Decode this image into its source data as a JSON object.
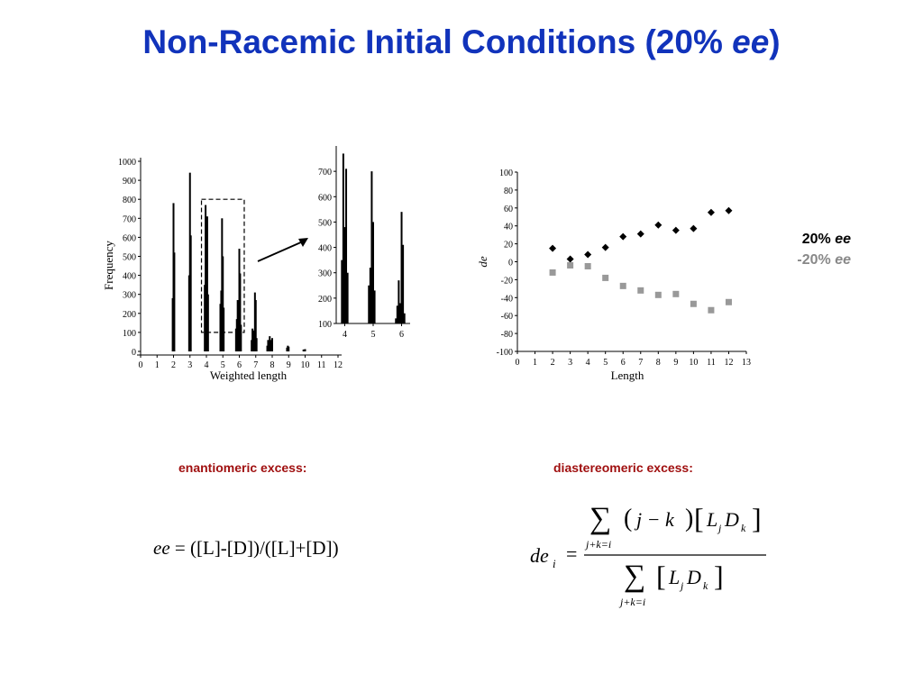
{
  "slide": {
    "title_main": "Non-Racemic Initial Conditions (20% ",
    "title_em": "ee",
    "title_end": ")"
  },
  "legend": {
    "positive_pct": "20% ",
    "positive_em": "ee",
    "negative_pct": "-20% ",
    "negative_em": "ee",
    "positive_color": "#000000",
    "negative_color": "#999999"
  },
  "labels": {
    "ee_heading": "enantiomeric excess:",
    "de_heading": "diastereomeric excess:",
    "ee_formula_var": "ee",
    "ee_formula_rest": " = ([L]-[D])/([L]+[D])",
    "de_lhs": "de",
    "de_lhs_sub": "i",
    "de_num_sum_limits": "j+k=i",
    "de_num_paren": "j − k",
    "de_num_bracket_L": "L",
    "de_num_bracket_j": "j",
    "de_num_bracket_D": "D",
    "de_num_bracket_k": "k",
    "de_den_sum_limits": "j+k=i"
  },
  "chart_data": [
    {
      "type": "bar",
      "xlabel": "Weighted length",
      "ylabel": "Frequency",
      "xlim": [
        0,
        12
      ],
      "ylim": [
        0,
        1000
      ],
      "xticks": [
        "0",
        "1",
        "2",
        "3",
        "4",
        "5",
        "6",
        "7",
        "8",
        "9",
        "10",
        "11",
        "12"
      ],
      "yticks": [
        "0",
        "100",
        "200",
        "300",
        "400",
        "500",
        "600",
        "700",
        "800",
        "900",
        "1000"
      ],
      "bars": [
        {
          "x": 1.95,
          "y": 280
        },
        {
          "x": 2.0,
          "y": 780
        },
        {
          "x": 2.05,
          "y": 520
        },
        {
          "x": 2.95,
          "y": 400
        },
        {
          "x": 3.0,
          "y": 940
        },
        {
          "x": 3.05,
          "y": 610
        },
        {
          "x": 3.9,
          "y": 350
        },
        {
          "x": 3.95,
          "y": 770
        },
        {
          "x": 4.0,
          "y": 480
        },
        {
          "x": 4.05,
          "y": 710
        },
        {
          "x": 4.1,
          "y": 300
        },
        {
          "x": 4.85,
          "y": 250
        },
        {
          "x": 4.9,
          "y": 320
        },
        {
          "x": 4.95,
          "y": 700
        },
        {
          "x": 5.0,
          "y": 500
        },
        {
          "x": 5.05,
          "y": 230
        },
        {
          "x": 5.8,
          "y": 120
        },
        {
          "x": 5.85,
          "y": 170
        },
        {
          "x": 5.9,
          "y": 270
        },
        {
          "x": 5.95,
          "y": 180
        },
        {
          "x": 6.0,
          "y": 540
        },
        {
          "x": 6.05,
          "y": 410
        },
        {
          "x": 6.1,
          "y": 140
        },
        {
          "x": 6.75,
          "y": 60
        },
        {
          "x": 6.8,
          "y": 120
        },
        {
          "x": 6.85,
          "y": 90
        },
        {
          "x": 6.9,
          "y": 110
        },
        {
          "x": 6.95,
          "y": 310
        },
        {
          "x": 7.0,
          "y": 270
        },
        {
          "x": 7.05,
          "y": 70
        },
        {
          "x": 7.7,
          "y": 30
        },
        {
          "x": 7.75,
          "y": 60
        },
        {
          "x": 7.8,
          "y": 50
        },
        {
          "x": 7.85,
          "y": 80
        },
        {
          "x": 7.9,
          "y": 60
        },
        {
          "x": 7.95,
          "y": 40
        },
        {
          "x": 8.0,
          "y": 70
        },
        {
          "x": 8.9,
          "y": 20
        },
        {
          "x": 8.95,
          "y": 30
        },
        {
          "x": 9.0,
          "y": 25
        },
        {
          "x": 9.9,
          "y": 10
        },
        {
          "x": 10.0,
          "y": 12
        }
      ],
      "zoom_box": {
        "x_from": 3.7,
        "x_to": 6.3,
        "y_from": 100,
        "y_to": 800
      }
    },
    {
      "type": "bar",
      "xlim": [
        3.7,
        6.3
      ],
      "ylim": [
        100,
        800
      ],
      "xticks": [
        "4",
        "5",
        "6"
      ],
      "yticks": [
        "100",
        "200",
        "300",
        "400",
        "500",
        "600",
        "700"
      ],
      "bars": [
        {
          "x": 3.9,
          "y": 350
        },
        {
          "x": 3.95,
          "y": 770
        },
        {
          "x": 4.0,
          "y": 480
        },
        {
          "x": 4.05,
          "y": 710
        },
        {
          "x": 4.1,
          "y": 300
        },
        {
          "x": 4.85,
          "y": 250
        },
        {
          "x": 4.9,
          "y": 320
        },
        {
          "x": 4.95,
          "y": 700
        },
        {
          "x": 5.0,
          "y": 500
        },
        {
          "x": 5.05,
          "y": 230
        },
        {
          "x": 5.8,
          "y": 120
        },
        {
          "x": 5.85,
          "y": 170
        },
        {
          "x": 5.9,
          "y": 270
        },
        {
          "x": 5.95,
          "y": 180
        },
        {
          "x": 6.0,
          "y": 540
        },
        {
          "x": 6.05,
          "y": 410
        },
        {
          "x": 6.1,
          "y": 140
        }
      ]
    },
    {
      "type": "scatter",
      "xlabel": "Length",
      "ylabel": "de",
      "xlim": [
        0,
        13
      ],
      "ylim": [
        -100,
        100
      ],
      "xticks": [
        "0",
        "1",
        "2",
        "3",
        "4",
        "5",
        "6",
        "7",
        "8",
        "9",
        "10",
        "11",
        "12",
        "13"
      ],
      "yticks": [
        "100",
        "80",
        "60",
        "40",
        "20",
        "0",
        "-20",
        "-40",
        "-60",
        "-80",
        "-100"
      ],
      "series": [
        {
          "name": "20% ee",
          "marker": "diamond",
          "color": "#000000",
          "x": [
            2,
            3,
            4,
            5,
            6,
            7,
            8,
            9,
            10,
            11,
            12
          ],
          "y": [
            15,
            3,
            8,
            16,
            28,
            31,
            41,
            35,
            37,
            55,
            57
          ]
        },
        {
          "name": "-20% ee",
          "marker": "square",
          "color": "#999999",
          "x": [
            2,
            3,
            4,
            5,
            6,
            7,
            8,
            9,
            10,
            11,
            12
          ],
          "y": [
            -12,
            -4,
            -5,
            -18,
            -27,
            -32,
            -37,
            -36,
            -47,
            -54,
            -45
          ]
        }
      ]
    }
  ]
}
